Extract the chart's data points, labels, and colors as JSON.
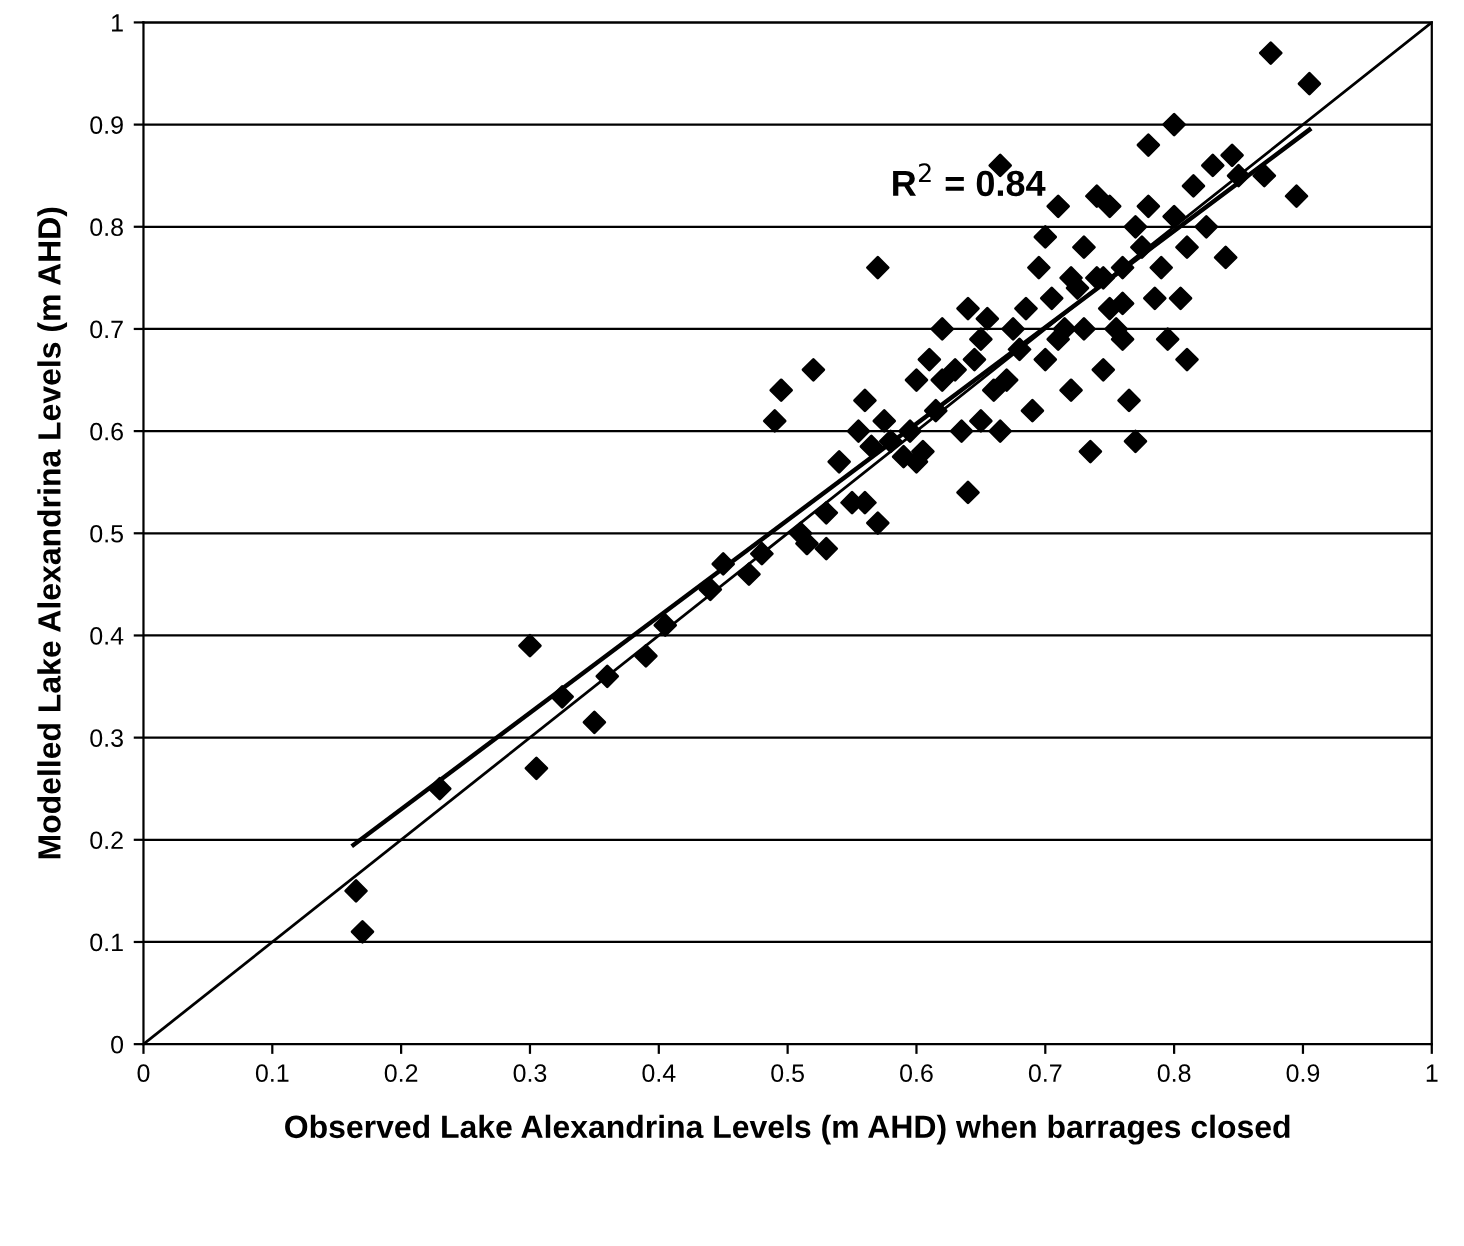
{
  "chart_data": {
    "type": "scatter",
    "xlabel": "Observed Lake Alexandrina Levels (m AHD) when barrages closed",
    "ylabel": "Modelled Lake Alexandrina Levels (m AHD)",
    "xlim": [
      0,
      1
    ],
    "ylim": [
      0,
      1
    ],
    "xticks": [
      0,
      0.1,
      0.2,
      0.3,
      0.4,
      0.5,
      0.6,
      0.7,
      0.8,
      0.9,
      1
    ],
    "yticks": [
      0,
      0.1,
      0.2,
      0.3,
      0.4,
      0.5,
      0.6,
      0.7,
      0.8,
      0.9,
      1
    ],
    "grid": "y",
    "legend": false,
    "annotations": [
      "R$^{2}$ = 0.84"
    ],
    "series": [
      {
        "marker": "diamond",
        "color": "#000000",
        "x": [
          0.165,
          0.17,
          0.23,
          0.3,
          0.305,
          0.325,
          0.35,
          0.36,
          0.39,
          0.405,
          0.44,
          0.45,
          0.47,
          0.48,
          0.49,
          0.495,
          0.51,
          0.515,
          0.52,
          0.53,
          0.53,
          0.54,
          0.55,
          0.555,
          0.56,
          0.56,
          0.565,
          0.57,
          0.57,
          0.575,
          0.58,
          0.59,
          0.595,
          0.6,
          0.6,
          0.605,
          0.61,
          0.615,
          0.62,
          0.62,
          0.63,
          0.635,
          0.64,
          0.64,
          0.645,
          0.65,
          0.65,
          0.655,
          0.66,
          0.665,
          0.665,
          0.67,
          0.675,
          0.68,
          0.685,
          0.69,
          0.695,
          0.7,
          0.7,
          0.705,
          0.71,
          0.71,
          0.715,
          0.72,
          0.72,
          0.725,
          0.73,
          0.73,
          0.735,
          0.74,
          0.74,
          0.745,
          0.75,
          0.75,
          0.755,
          0.76,
          0.76,
          0.765,
          0.77,
          0.77,
          0.775,
          0.78,
          0.78,
          0.785,
          0.79,
          0.795,
          0.8,
          0.8,
          0.805,
          0.81,
          0.81,
          0.815,
          0.825,
          0.83,
          0.84,
          0.845,
          0.85,
          0.87,
          0.875,
          0.895,
          0.905,
          0.76,
          0.745
        ],
        "values": [
          0.15,
          0.11,
          0.25,
          0.39,
          0.27,
          0.34,
          0.315,
          0.36,
          0.38,
          0.41,
          0.445,
          0.47,
          0.46,
          0.48,
          0.61,
          0.64,
          0.5,
          0.49,
          0.66,
          0.52,
          0.485,
          0.57,
          0.53,
          0.6,
          0.53,
          0.63,
          0.585,
          0.76,
          0.51,
          0.61,
          0.59,
          0.575,
          0.6,
          0.57,
          0.65,
          0.58,
          0.67,
          0.62,
          0.7,
          0.65,
          0.66,
          0.6,
          0.72,
          0.54,
          0.67,
          0.61,
          0.69,
          0.71,
          0.64,
          0.86,
          0.6,
          0.65,
          0.7,
          0.68,
          0.72,
          0.62,
          0.76,
          0.79,
          0.67,
          0.73,
          0.69,
          0.82,
          0.7,
          0.75,
          0.64,
          0.74,
          0.78,
          0.7,
          0.58,
          0.75,
          0.83,
          0.66,
          0.72,
          0.82,
          0.7,
          0.76,
          0.69,
          0.63,
          0.8,
          0.59,
          0.78,
          0.82,
          0.88,
          0.73,
          0.76,
          0.69,
          0.81,
          0.9,
          0.73,
          0.78,
          0.67,
          0.84,
          0.8,
          0.86,
          0.77,
          0.87,
          0.85,
          0.85,
          0.97,
          0.83,
          0.94,
          0.725,
          0.75
        ]
      },
      {
        "type": "line",
        "marker": "none",
        "color": "#000000",
        "x": [
          0.163,
          0.905
        ],
        "values": [
          0.195,
          0.895
        ]
      },
      {
        "type": "line",
        "marker": "none",
        "color": "#000000",
        "x": [
          0,
          1
        ],
        "values": [
          0,
          1
        ]
      }
    ]
  }
}
